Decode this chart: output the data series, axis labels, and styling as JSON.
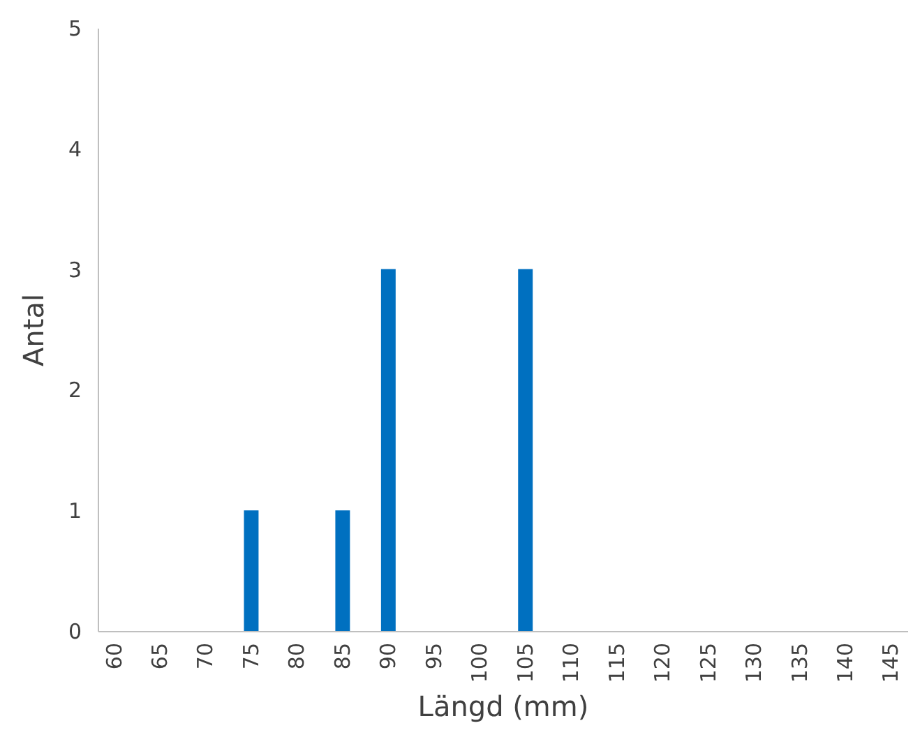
{
  "chart_data": {
    "type": "bar",
    "xlabel": "Längd (mm)",
    "ylabel": "Antal",
    "categories": [
      "60",
      "65",
      "70",
      "75",
      "80",
      "85",
      "90",
      "95",
      "100",
      "105",
      "110",
      "115",
      "120",
      "125",
      "130",
      "135",
      "140",
      "145"
    ],
    "values": [
      0,
      0,
      0,
      1,
      0,
      1,
      3,
      0,
      0,
      3,
      0,
      0,
      0,
      0,
      0,
      0,
      0,
      0
    ],
    "color": "#0070c0",
    "ylim": [
      0,
      5
    ],
    "yticks": [
      0,
      1,
      2,
      3,
      4,
      5
    ],
    "grid": false
  }
}
